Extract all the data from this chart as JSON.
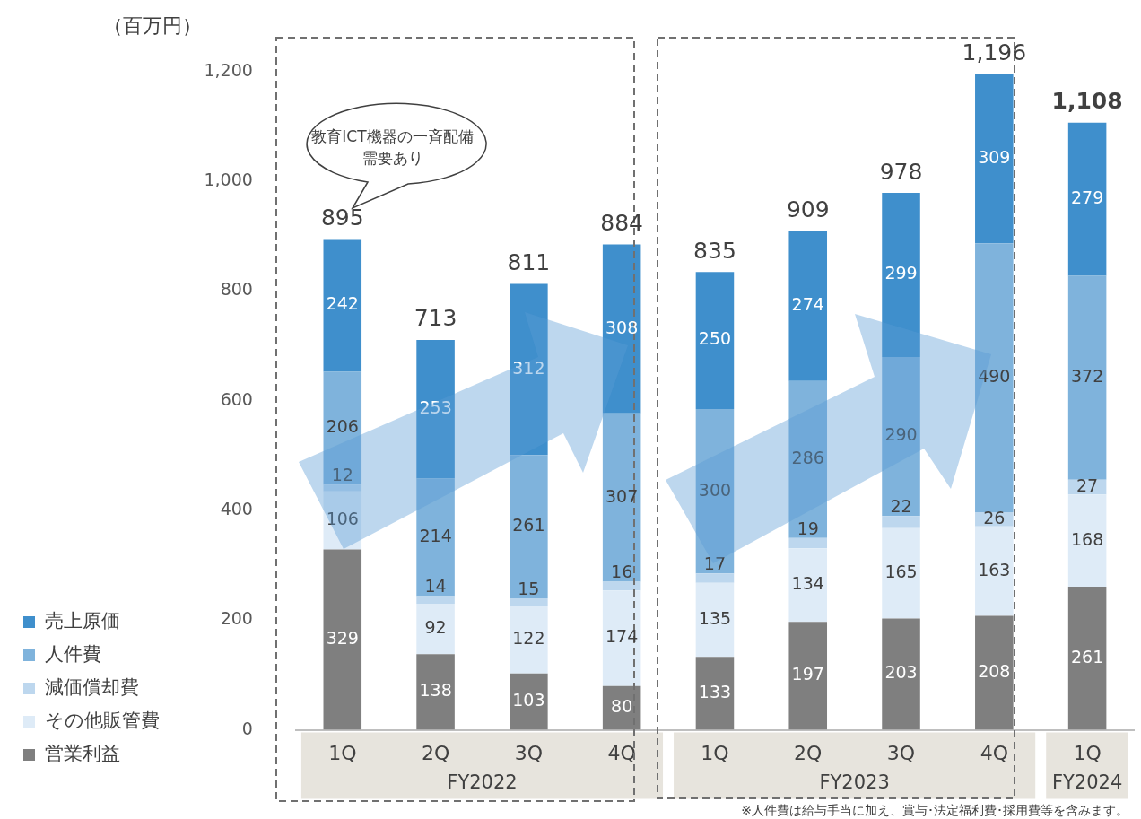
{
  "chart_data": {
    "type": "bar",
    "stacked": true,
    "ylabel": "（百万円）",
    "categories": [
      "1Q",
      "2Q",
      "3Q",
      "4Q",
      "1Q",
      "2Q",
      "3Q",
      "4Q",
      "1Q"
    ],
    "series": [
      {
        "name": "営業利益",
        "color": "#7f7f7f",
        "values": [
          329,
          138,
          103,
          80,
          133,
          197,
          203,
          208,
          261
        ]
      },
      {
        "name": "その他販管費",
        "color": "#deebf7",
        "values": [
          106,
          92,
          122,
          174,
          135,
          134,
          165,
          163,
          168
        ]
      },
      {
        "name": "減価償却費",
        "color": "#bdd7ee",
        "values": [
          12,
          14,
          15,
          16,
          17,
          19,
          22,
          26,
          27
        ]
      },
      {
        "name": "人件費",
        "color": "#7fb3dc",
        "values": [
          206,
          214,
          261,
          307,
          300,
          286,
          290,
          490,
          372
        ]
      },
      {
        "name": "売上原価",
        "color": "#3f8fcc",
        "values": [
          242,
          253,
          312,
          308,
          250,
          274,
          299,
          309,
          279
        ]
      }
    ],
    "ylim": [
      0,
      1200
    ],
    "yticks": [
      {
        "value": 0,
        "label": "0"
      },
      {
        "value": 200,
        "label": "200"
      },
      {
        "value": 400,
        "label": "400"
      },
      {
        "value": 600,
        "label": "600"
      },
      {
        "value": 800,
        "label": "800"
      },
      {
        "value": 1000,
        "label": "1,000"
      },
      {
        "value": 1200,
        "label": "1,200"
      }
    ],
    "grid": false,
    "legend": "bottom left",
    "data_labels": true,
    "totals": [
      "895",
      "713",
      "811",
      "884",
      "835",
      "909",
      "978",
      "1,196",
      "1,108"
    ],
    "annotations": [
      "FY2022",
      "FY2023",
      "FY2024",
      "教育ICT機器の一斉配備需要あり",
      "※人件費は給与手当に加え、賞与･法定福利費･採用費等を含みます。"
    ]
  }
}
